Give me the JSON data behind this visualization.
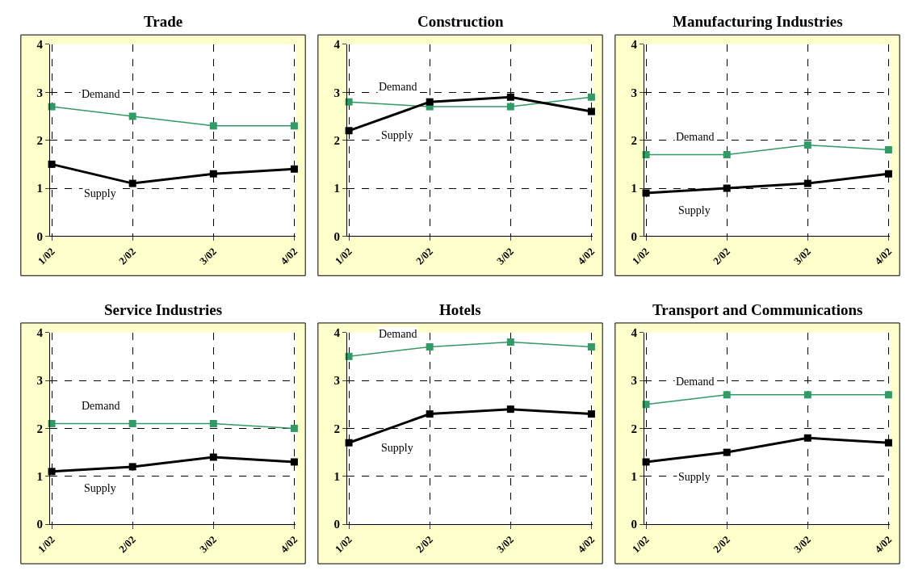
{
  "chart_data": [
    {
      "type": "line",
      "title": "Trade",
      "categories": [
        "1/02",
        "2/02",
        "3/02",
        "4/02"
      ],
      "ylim": [
        0,
        4
      ],
      "yticks": [
        0,
        1,
        2,
        3,
        4
      ],
      "grid": true,
      "marker": "square",
      "legend": false,
      "series": [
        {
          "name": "Demand",
          "color": "#339966",
          "values": [
            2.7,
            2.5,
            2.3,
            2.3
          ]
        },
        {
          "name": "Supply",
          "color": "#000000",
          "values": [
            1.5,
            1.1,
            1.3,
            1.4
          ]
        }
      ]
    },
    {
      "type": "line",
      "title": "Construction",
      "categories": [
        "1/02",
        "2/02",
        "3/02",
        "4/02"
      ],
      "ylim": [
        0,
        4
      ],
      "yticks": [
        0,
        1,
        2,
        3,
        4
      ],
      "grid": true,
      "marker": "square",
      "legend": false,
      "series": [
        {
          "name": "Demand",
          "color": "#339966",
          "values": [
            2.8,
            2.7,
            2.7,
            2.9
          ]
        },
        {
          "name": "Supply",
          "color": "#000000",
          "values": [
            2.2,
            2.8,
            2.9,
            2.6
          ]
        }
      ]
    },
    {
      "type": "line",
      "title": "Manufacturing Industries",
      "categories": [
        "1/02",
        "2/02",
        "3/02",
        "4/02"
      ],
      "ylim": [
        0,
        4
      ],
      "yticks": [
        0,
        1,
        2,
        3,
        4
      ],
      "grid": true,
      "marker": "square",
      "legend": false,
      "series": [
        {
          "name": "Demand",
          "color": "#339966",
          "values": [
            1.7,
            1.7,
            1.9,
            1.8
          ]
        },
        {
          "name": "Supply",
          "color": "#000000",
          "values": [
            0.9,
            1.0,
            1.1,
            1.3
          ]
        }
      ]
    },
    {
      "type": "line",
      "title": "Service Industries",
      "categories": [
        "1/02",
        "2/02",
        "3/02",
        "4/02"
      ],
      "ylim": [
        0,
        4
      ],
      "yticks": [
        0,
        1,
        2,
        3,
        4
      ],
      "grid": true,
      "marker": "square",
      "legend": false,
      "series": [
        {
          "name": "Demand",
          "color": "#339966",
          "values": [
            2.1,
            2.1,
            2.1,
            2.0
          ]
        },
        {
          "name": "Supply",
          "color": "#000000",
          "values": [
            1.1,
            1.2,
            1.4,
            1.3
          ]
        }
      ]
    },
    {
      "type": "line",
      "title": "Hotels",
      "categories": [
        "1/02",
        "2/02",
        "3/02",
        "4/02"
      ],
      "ylim": [
        0,
        4
      ],
      "yticks": [
        0,
        1,
        2,
        3,
        4
      ],
      "grid": true,
      "marker": "square",
      "legend": false,
      "series": [
        {
          "name": "Demand",
          "color": "#339966",
          "values": [
            3.5,
            3.7,
            3.8,
            3.7
          ]
        },
        {
          "name": "Supply",
          "color": "#000000",
          "values": [
            1.7,
            2.3,
            2.4,
            2.3
          ]
        }
      ]
    },
    {
      "type": "line",
      "title": "Transport and Communications",
      "categories": [
        "1/02",
        "2/02",
        "3/02",
        "4/02"
      ],
      "ylim": [
        0,
        4
      ],
      "yticks": [
        0,
        1,
        2,
        3,
        4
      ],
      "grid": true,
      "marker": "square",
      "legend": false,
      "series": [
        {
          "name": "Demand",
          "color": "#339966",
          "values": [
            2.5,
            2.7,
            2.7,
            2.7
          ]
        },
        {
          "name": "Supply",
          "color": "#000000",
          "values": [
            1.3,
            1.5,
            1.8,
            1.7
          ]
        }
      ]
    }
  ]
}
